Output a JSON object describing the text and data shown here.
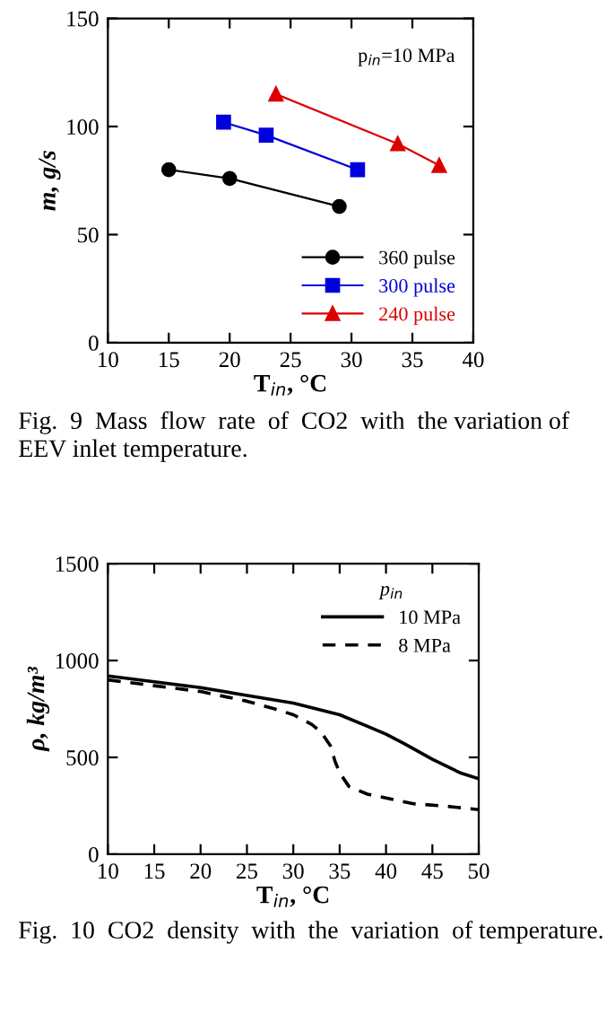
{
  "chart_data": [
    {
      "type": "line",
      "xlabel": "T$_{in}$, °C",
      "ylabel": "m, g/s",
      "xlim": [
        10,
        40
      ],
      "ylim": [
        0,
        150
      ],
      "xticks": [
        10,
        15,
        20,
        25,
        30,
        35,
        40
      ],
      "yticks": [
        0,
        50,
        100,
        150
      ],
      "legend": "bottom right",
      "grid": false,
      "line_style": "solid",
      "annotations": [
        "p$_{in}$=10 MPa",
        "Fig.  9  Mass  flow  rate  of  CO2  with  the variation of EEV inlet temperature."
      ],
      "series": [
        {
          "name": "360 pulse",
          "color": "#000000",
          "marker": "circle",
          "x": [
            15,
            20,
            29
          ],
          "values": [
            80,
            76,
            63
          ]
        },
        {
          "name": "300 pulse",
          "color": "#0000dd",
          "marker": "square",
          "x": [
            19.5,
            23,
            30.5
          ],
          "values": [
            102,
            96,
            80
          ]
        },
        {
          "name": "240 pulse",
          "color": "#dd0000",
          "marker": "triangle",
          "x": [
            23.8,
            33.8,
            37.2
          ],
          "values": [
            115,
            92,
            82
          ]
        }
      ]
    },
    {
      "type": "line",
      "xlabel": "T$_{in}$, °C",
      "ylabel": "ρ, kg/m³",
      "xlim": [
        10,
        50
      ],
      "ylim": [
        0,
        1500
      ],
      "xticks": [
        10,
        15,
        20,
        25,
        30,
        35,
        40,
        45,
        50
      ],
      "yticks": [
        0,
        500,
        1000,
        1500
      ],
      "legend": "top right",
      "legend_title": "p$_{in}$",
      "grid": false,
      "marker": "none",
      "annotations": [
        "Fig.  10  CO2  density  with  the  variation  of temperature."
      ],
      "series": [
        {
          "name": "10 MPa",
          "color": "#000000",
          "line_style": "solid",
          "x": [
            10,
            15,
            20,
            25,
            30,
            35,
            38,
            40,
            42,
            45,
            48,
            50
          ],
          "values": [
            920,
            890,
            860,
            820,
            780,
            720,
            660,
            620,
            570,
            490,
            420,
            390
          ]
        },
        {
          "name": "8 MPa",
          "color": "#000000",
          "line_style": "dashed",
          "x": [
            10,
            15,
            20,
            25,
            28,
            30,
            32,
            33,
            34,
            34.5,
            35,
            36,
            38,
            40,
            43,
            46,
            50
          ],
          "values": [
            900,
            870,
            840,
            790,
            750,
            720,
            670,
            630,
            560,
            480,
            420,
            350,
            310,
            290,
            260,
            250,
            230
          ]
        }
      ]
    }
  ]
}
